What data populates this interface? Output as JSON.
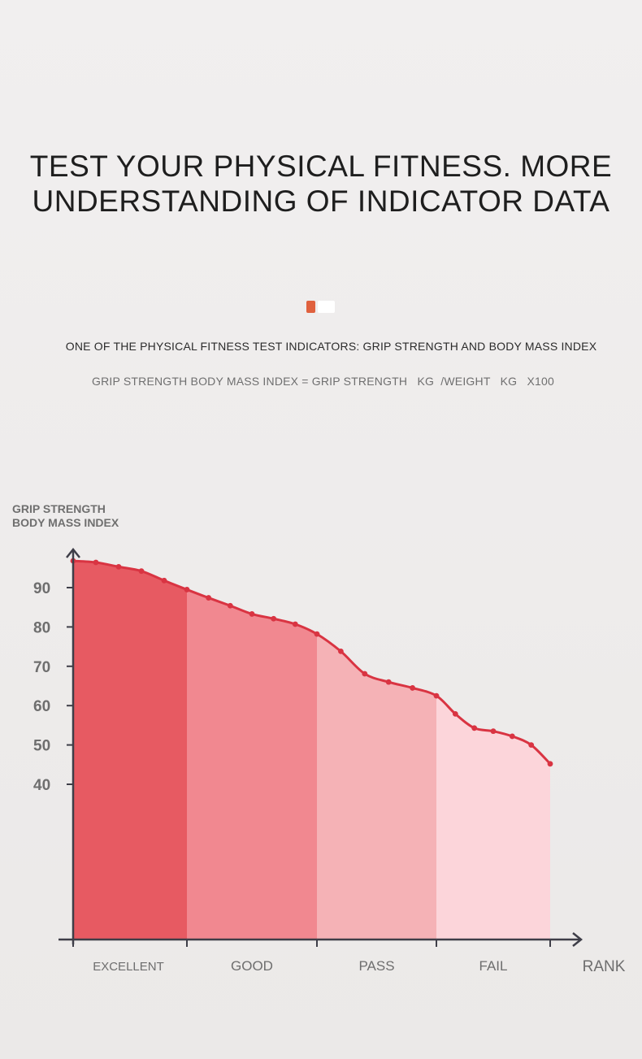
{
  "title_line1": "TEST YOUR PHYSICAL FITNESS. MORE",
  "title_line2": "UNDERSTANDING OF INDICATOR DATA",
  "subtitle": "ONE OF THE PHYSICAL FITNESS TEST INDICATORS: GRIP STRENGTH AND BODY MASS INDEX",
  "formula": "GRIP STRENGTH BODY MASS INDEX = GRIP STRENGTH   KG  /WEIGHT   KG   X100",
  "chart_data": {
    "type": "area",
    "ylabel_line1": "GRIP STRENGTH",
    "ylabel_line2": "BODY MASS INDEX",
    "xlabel": "RANK",
    "categories": [
      "EXCELLENT",
      "GOOD",
      "PASS",
      "FAIL"
    ],
    "yticks": [
      90,
      80,
      70,
      60,
      50,
      40
    ],
    "ylim": [
      0,
      100
    ],
    "category_colors": [
      "#e75a62",
      "#f18890",
      "#f5b2b6",
      "#fcd5da"
    ],
    "line_color": "#d93442",
    "points": [
      {
        "category": "EXCELLENT",
        "value": 96.8
      },
      {
        "category": "EXCELLENT",
        "value": 96.4
      },
      {
        "category": "EXCELLENT",
        "value": 95.3
      },
      {
        "category": "EXCELLENT",
        "value": 94.2
      },
      {
        "category": "EXCELLENT",
        "value": 91.8
      },
      {
        "category": "EXCELLENT",
        "value": 89.5
      },
      {
        "category": "GOOD",
        "value": 87.4
      },
      {
        "category": "GOOD",
        "value": 85.4
      },
      {
        "category": "GOOD",
        "value": 83.3
      },
      {
        "category": "GOOD",
        "value": 82.1
      },
      {
        "category": "GOOD",
        "value": 80.7
      },
      {
        "category": "GOOD",
        "value": 78.2
      },
      {
        "category": "PASS",
        "value": 73.8
      },
      {
        "category": "PASS",
        "value": 68.1
      },
      {
        "category": "PASS",
        "value": 66.0
      },
      {
        "category": "PASS",
        "value": 64.5
      },
      {
        "category": "PASS",
        "value": 62.5
      },
      {
        "category": "FAIL",
        "value": 57.9
      },
      {
        "category": "FAIL",
        "value": 54.3
      },
      {
        "category": "FAIL",
        "value": 53.5
      },
      {
        "category": "FAIL",
        "value": 52.2
      },
      {
        "category": "FAIL",
        "value": 50.0
      },
      {
        "category": "FAIL",
        "value": 45.2
      }
    ]
  }
}
